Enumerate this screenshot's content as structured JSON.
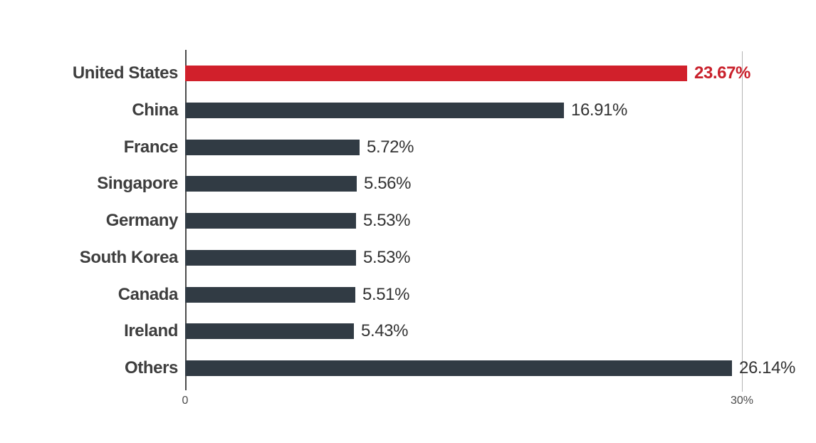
{
  "chart_data": {
    "type": "bar",
    "orientation": "horizontal",
    "title": "",
    "categories": [
      "United States",
      "China",
      "France",
      "Singapore",
      "Germany",
      "South Korea",
      "Canada",
      "Ireland",
      "Others"
    ],
    "values": [
      23.67,
      16.91,
      5.72,
      5.56,
      5.53,
      5.53,
      5.51,
      5.43,
      26.14
    ],
    "value_labels": [
      "23.67%",
      "16.91%",
      "5.72%",
      "5.56%",
      "5.53%",
      "5.53%",
      "5.51%",
      "5.43%",
      "26.14%"
    ],
    "highlight_index": 0,
    "axis": {
      "xlim": [
        0,
        30
      ],
      "tick_labels": [
        "0",
        "30%"
      ],
      "grid": "single vertical gridline at 30%"
    },
    "colors": {
      "highlight_bar": "#D1202B",
      "bar": "#313B44",
      "highlight_value_text": "#C9202B",
      "value_text": "#333333",
      "category_text": "#3E3E3E",
      "axis_line": "#4D4D4D",
      "gridline": "#B3B3B3",
      "tick_text": "#4C4C4C"
    }
  }
}
